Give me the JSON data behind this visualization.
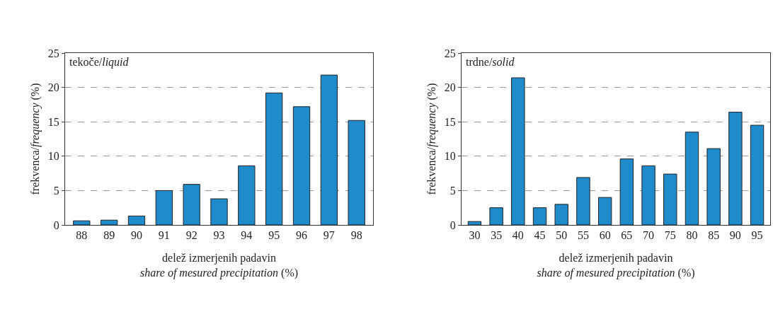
{
  "chart_data": [
    {
      "type": "bar",
      "categories": [
        "88",
        "89",
        "90",
        "91",
        "92",
        "93",
        "94",
        "95",
        "96",
        "97",
        "98"
      ],
      "values": [
        0.6,
        0.7,
        1.3,
        5.0,
        5.9,
        3.8,
        8.6,
        19.2,
        17.2,
        21.8,
        15.2
      ],
      "color": "#1f8bcb",
      "ylim": [
        0,
        25
      ],
      "yticks": [
        0,
        5,
        10,
        15,
        20,
        25
      ],
      "grid": "y",
      "ylabel": "frekvenca/frequency (%)",
      "xlabel": "delež izmerjenih padavin\nshare of mesured precipitation (%)",
      "annotations": [
        "tekoče/liquid"
      ]
    },
    {
      "type": "bar",
      "categories": [
        "30",
        "35",
        "40",
        "45",
        "50",
        "55",
        "60",
        "65",
        "70",
        "75",
        "80",
        "85",
        "90",
        "95"
      ],
      "values": [
        0.5,
        2.5,
        21.4,
        2.5,
        3.0,
        6.9,
        4.0,
        9.6,
        8.6,
        7.4,
        13.5,
        11.1,
        16.4,
        14.5
      ],
      "color": "#1f8bcb",
      "ylim": [
        0,
        25
      ],
      "yticks": [
        0,
        5,
        10,
        15,
        20,
        25
      ],
      "grid": "y",
      "ylabel": "frekvenca/frequency (%)",
      "xlabel": "delež izmerjenih padavin\nshare of mesured precipitation (%)",
      "annotations": [
        "trdne/solid"
      ]
    }
  ]
}
